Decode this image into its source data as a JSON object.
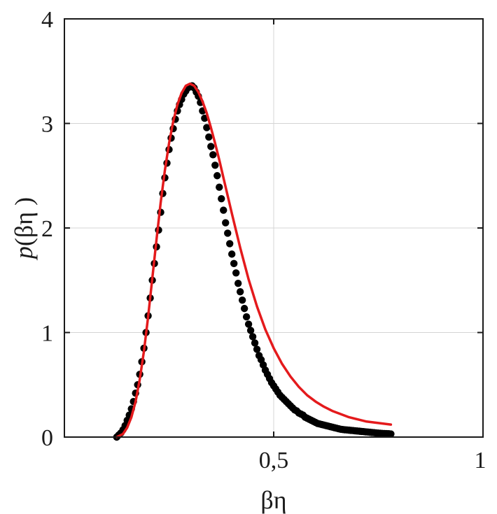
{
  "chart_data": {
    "type": "scatter",
    "title": "",
    "xlabel": "βη",
    "ylabel_prefix": "p",
    "ylabel_arg": "(βη )",
    "xlim": [
      0,
      1
    ],
    "ylim": [
      0,
      4
    ],
    "xticks": [
      0.5,
      1
    ],
    "xtick_labels": [
      "0,5",
      "1"
    ],
    "yticks": [
      0,
      1,
      2,
      3,
      4
    ],
    "ytick_labels": [
      "0",
      "1",
      "2",
      "3",
      "4"
    ],
    "grid": true,
    "legend": "none",
    "series": [
      {
        "kind": "scatter",
        "color": "#000000",
        "x": [
          0.125,
          0.13,
          0.135,
          0.14,
          0.145,
          0.15,
          0.155,
          0.16,
          0.165,
          0.17,
          0.175,
          0.18,
          0.185,
          0.19,
          0.195,
          0.2,
          0.205,
          0.21,
          0.215,
          0.22,
          0.225,
          0.23,
          0.235,
          0.24,
          0.245,
          0.25,
          0.255,
          0.26,
          0.265,
          0.27,
          0.275,
          0.28,
          0.285,
          0.29,
          0.295,
          0.3,
          0.305,
          0.31,
          0.315,
          0.32,
          0.325,
          0.33,
          0.335,
          0.34,
          0.345,
          0.35,
          0.355,
          0.36,
          0.365,
          0.37,
          0.375,
          0.38,
          0.385,
          0.39,
          0.395,
          0.4,
          0.405,
          0.41,
          0.415,
          0.42,
          0.425,
          0.43,
          0.435,
          0.44,
          0.445,
          0.45,
          0.455,
          0.46,
          0.465,
          0.47,
          0.475,
          0.48,
          0.485,
          0.49,
          0.495,
          0.5,
          0.505,
          0.51,
          0.515,
          0.52,
          0.525,
          0.53,
          0.535,
          0.54,
          0.545,
          0.55,
          0.555,
          0.56,
          0.565,
          0.57,
          0.575,
          0.58,
          0.585,
          0.59,
          0.595,
          0.6,
          0.605,
          0.61,
          0.615,
          0.62,
          0.625,
          0.63,
          0.635,
          0.64,
          0.645,
          0.65,
          0.655,
          0.66,
          0.665,
          0.67,
          0.675,
          0.68,
          0.685,
          0.69,
          0.695,
          0.7,
          0.705,
          0.71,
          0.715,
          0.72,
          0.725,
          0.73,
          0.735,
          0.74,
          0.745,
          0.75,
          0.755,
          0.76,
          0.765,
          0.77,
          0.775,
          0.78
        ],
        "y": [
          0,
          0.02,
          0.04,
          0.07,
          0.11,
          0.16,
          0.21,
          0.27,
          0.34,
          0.42,
          0.5,
          0.6,
          0.72,
          0.85,
          1,
          1.16,
          1.33,
          1.5,
          1.66,
          1.82,
          1.98,
          2.15,
          2.33,
          2.48,
          2.62,
          2.75,
          2.86,
          2.95,
          3.04,
          3.12,
          3.18,
          3.23,
          3.28,
          3.31,
          3.34,
          3.35,
          3.36,
          3.34,
          3.3,
          3.26,
          3.2,
          3.12,
          3.05,
          2.96,
          2.87,
          2.78,
          2.7,
          2.6,
          2.5,
          2.39,
          2.28,
          2.17,
          2.05,
          1.95,
          1.85,
          1.75,
          1.66,
          1.57,
          1.47,
          1.39,
          1.31,
          1.23,
          1.15,
          1.08,
          1.02,
          0.96,
          0.9,
          0.84,
          0.78,
          0.74,
          0.69,
          0.64,
          0.6,
          0.56,
          0.52,
          0.49,
          0.46,
          0.43,
          0.4,
          0.38,
          0.36,
          0.34,
          0.32,
          0.3,
          0.28,
          0.26,
          0.25,
          0.23,
          0.22,
          0.21,
          0.19,
          0.18,
          0.17,
          0.16,
          0.15,
          0.14,
          0.13,
          0.125,
          0.12,
          0.115,
          0.11,
          0.105,
          0.1,
          0.095,
          0.09,
          0.085,
          0.08,
          0.075,
          0.072,
          0.07,
          0.068,
          0.066,
          0.064,
          0.062,
          0.06,
          0.058,
          0.056,
          0.054,
          0.052,
          0.05,
          0.048,
          0.046,
          0.044,
          0.042,
          0.04,
          0.038,
          0.036,
          0.035,
          0.034,
          0.033,
          0.032,
          0.03
        ]
      },
      {
        "kind": "line",
        "color": "#e41a1c",
        "x": [
          0.125,
          0.14,
          0.15,
          0.16,
          0.17,
          0.18,
          0.19,
          0.2,
          0.21,
          0.22,
          0.23,
          0.24,
          0.25,
          0.26,
          0.27,
          0.28,
          0.29,
          0.3,
          0.31,
          0.32,
          0.33,
          0.34,
          0.35,
          0.36,
          0.37,
          0.38,
          0.39,
          0.4,
          0.42,
          0.44,
          0.46,
          0.48,
          0.5,
          0.52,
          0.54,
          0.56,
          0.58,
          0.6,
          0.62,
          0.64,
          0.66,
          0.68,
          0.7,
          0.72,
          0.74,
          0.76,
          0.78
        ],
        "y": [
          0,
          0.03,
          0.09,
          0.19,
          0.34,
          0.55,
          0.82,
          1.15,
          1.52,
          1.89,
          2.24,
          2.55,
          2.81,
          3.02,
          3.18,
          3.29,
          3.36,
          3.38,
          3.36,
          3.3,
          3.21,
          3.1,
          2.96,
          2.81,
          2.65,
          2.48,
          2.31,
          2.14,
          1.81,
          1.51,
          1.25,
          1.03,
          0.85,
          0.7,
          0.58,
          0.48,
          0.4,
          0.34,
          0.29,
          0.25,
          0.22,
          0.19,
          0.17,
          0.15,
          0.14,
          0.13,
          0.12
        ]
      }
    ]
  }
}
